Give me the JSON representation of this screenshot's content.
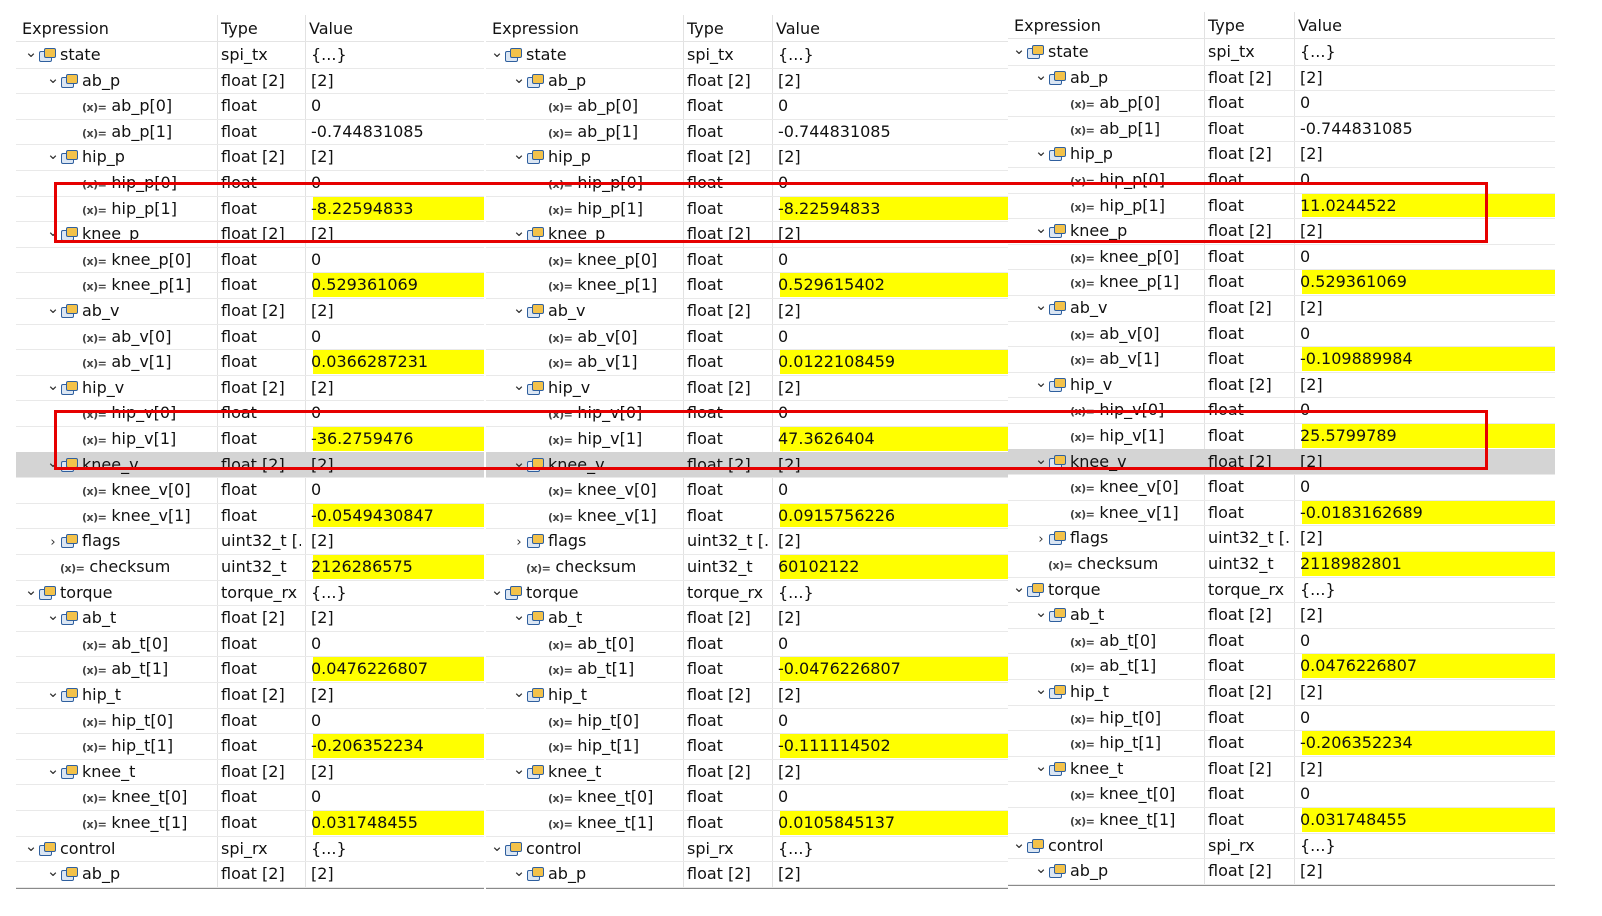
{
  "headers": {
    "expression": "Expression",
    "type": "Type",
    "value": "Value"
  },
  "panels": [
    {
      "rows": [
        {
          "d": 0,
          "t": "open",
          "i": "struct",
          "n": "state",
          "ty": "spi_tx",
          "v": "{...}"
        },
        {
          "d": 1,
          "t": "open",
          "i": "struct",
          "n": "ab_p",
          "ty": "float [2]",
          "v": "[2]"
        },
        {
          "d": 2,
          "t": "",
          "i": "var",
          "n": "ab_p[0]",
          "ty": "float",
          "v": "0"
        },
        {
          "d": 2,
          "t": "",
          "i": "var",
          "n": "ab_p[1]",
          "ty": "float",
          "v": "-0.744831085"
        },
        {
          "d": 1,
          "t": "open",
          "i": "struct",
          "n": "hip_p",
          "ty": "float [2]",
          "v": "[2]"
        },
        {
          "d": 2,
          "t": "",
          "i": "var",
          "n": "hip_p[0]",
          "ty": "float",
          "v": "0"
        },
        {
          "d": 2,
          "t": "",
          "i": "var",
          "n": "hip_p[1]",
          "ty": "float",
          "v": "-8.22594833",
          "h": true
        },
        {
          "d": 1,
          "t": "open",
          "i": "struct",
          "n": "knee_p",
          "ty": "float [2]",
          "v": "[2]"
        },
        {
          "d": 2,
          "t": "",
          "i": "var",
          "n": "knee_p[0]",
          "ty": "float",
          "v": "0"
        },
        {
          "d": 2,
          "t": "",
          "i": "var",
          "n": "knee_p[1]",
          "ty": "float",
          "v": "0.529361069",
          "h": true
        },
        {
          "d": 1,
          "t": "open",
          "i": "struct",
          "n": "ab_v",
          "ty": "float [2]",
          "v": "[2]"
        },
        {
          "d": 2,
          "t": "",
          "i": "var",
          "n": "ab_v[0]",
          "ty": "float",
          "v": "0"
        },
        {
          "d": 2,
          "t": "",
          "i": "var",
          "n": "ab_v[1]",
          "ty": "float",
          "v": "0.0366287231",
          "h": true
        },
        {
          "d": 1,
          "t": "open",
          "i": "struct",
          "n": "hip_v",
          "ty": "float [2]",
          "v": "[2]"
        },
        {
          "d": 2,
          "t": "",
          "i": "var",
          "n": "hip_v[0]",
          "ty": "float",
          "v": "0"
        },
        {
          "d": 2,
          "t": "",
          "i": "var",
          "n": "hip_v[1]",
          "ty": "float",
          "v": "-36.2759476",
          "h": true
        },
        {
          "d": 1,
          "t": "open",
          "i": "struct",
          "n": "knee_v",
          "ty": "float [2]",
          "v": "[2]",
          "sel": true
        },
        {
          "d": 2,
          "t": "",
          "i": "var",
          "n": "knee_v[0]",
          "ty": "float",
          "v": "0"
        },
        {
          "d": 2,
          "t": "",
          "i": "var",
          "n": "knee_v[1]",
          "ty": "float",
          "v": "-0.0549430847",
          "h": true
        },
        {
          "d": 1,
          "t": "closed",
          "i": "struct",
          "n": "flags",
          "ty": "uint32_t [...",
          "v": "[2]"
        },
        {
          "d": 1,
          "t": "",
          "i": "var",
          "n": "checksum",
          "ty": "uint32_t",
          "v": "2126286575",
          "h": true
        },
        {
          "d": 0,
          "t": "open",
          "i": "struct",
          "n": "torque",
          "ty": "torque_rx",
          "v": "{...}"
        },
        {
          "d": 1,
          "t": "open",
          "i": "struct",
          "n": "ab_t",
          "ty": "float [2]",
          "v": "[2]"
        },
        {
          "d": 2,
          "t": "",
          "i": "var",
          "n": "ab_t[0]",
          "ty": "float",
          "v": "0"
        },
        {
          "d": 2,
          "t": "",
          "i": "var",
          "n": "ab_t[1]",
          "ty": "float",
          "v": "0.0476226807",
          "h": true
        },
        {
          "d": 1,
          "t": "open",
          "i": "struct",
          "n": "hip_t",
          "ty": "float [2]",
          "v": "[2]"
        },
        {
          "d": 2,
          "t": "",
          "i": "var",
          "n": "hip_t[0]",
          "ty": "float",
          "v": "0"
        },
        {
          "d": 2,
          "t": "",
          "i": "var",
          "n": "hip_t[1]",
          "ty": "float",
          "v": "-0.206352234",
          "h": true
        },
        {
          "d": 1,
          "t": "open",
          "i": "struct",
          "n": "knee_t",
          "ty": "float [2]",
          "v": "[2]"
        },
        {
          "d": 2,
          "t": "",
          "i": "var",
          "n": "knee_t[0]",
          "ty": "float",
          "v": "0"
        },
        {
          "d": 2,
          "t": "",
          "i": "var",
          "n": "knee_t[1]",
          "ty": "float",
          "v": "0.031748455",
          "h": true
        },
        {
          "d": 0,
          "t": "open",
          "i": "struct",
          "n": "control",
          "ty": "spi_rx",
          "v": "{...}"
        },
        {
          "d": 1,
          "t": "open",
          "i": "struct",
          "n": "ab_p",
          "ty": "float [2]",
          "v": "[2]"
        }
      ]
    },
    {
      "rows": [
        {
          "d": 0,
          "t": "open",
          "i": "struct",
          "n": "state",
          "ty": "spi_tx",
          "v": "{...}"
        },
        {
          "d": 1,
          "t": "open",
          "i": "struct",
          "n": "ab_p",
          "ty": "float [2]",
          "v": "[2]"
        },
        {
          "d": 2,
          "t": "",
          "i": "var",
          "n": "ab_p[0]",
          "ty": "float",
          "v": "0"
        },
        {
          "d": 2,
          "t": "",
          "i": "var",
          "n": "ab_p[1]",
          "ty": "float",
          "v": "-0.744831085"
        },
        {
          "d": 1,
          "t": "open",
          "i": "struct",
          "n": "hip_p",
          "ty": "float [2]",
          "v": "[2]"
        },
        {
          "d": 2,
          "t": "",
          "i": "var",
          "n": "hip_p[0]",
          "ty": "float",
          "v": "0"
        },
        {
          "d": 2,
          "t": "",
          "i": "var",
          "n": "hip_p[1]",
          "ty": "float",
          "v": "-8.22594833",
          "h": true
        },
        {
          "d": 1,
          "t": "open",
          "i": "struct",
          "n": "knee_p",
          "ty": "float [2]",
          "v": "[2]"
        },
        {
          "d": 2,
          "t": "",
          "i": "var",
          "n": "knee_p[0]",
          "ty": "float",
          "v": "0"
        },
        {
          "d": 2,
          "t": "",
          "i": "var",
          "n": "knee_p[1]",
          "ty": "float",
          "v": "0.529615402",
          "h": true
        },
        {
          "d": 1,
          "t": "open",
          "i": "struct",
          "n": "ab_v",
          "ty": "float [2]",
          "v": "[2]"
        },
        {
          "d": 2,
          "t": "",
          "i": "var",
          "n": "ab_v[0]",
          "ty": "float",
          "v": "0"
        },
        {
          "d": 2,
          "t": "",
          "i": "var",
          "n": "ab_v[1]",
          "ty": "float",
          "v": "0.0122108459",
          "h": true
        },
        {
          "d": 1,
          "t": "open",
          "i": "struct",
          "n": "hip_v",
          "ty": "float [2]",
          "v": "[2]"
        },
        {
          "d": 2,
          "t": "",
          "i": "var",
          "n": "hip_v[0]",
          "ty": "float",
          "v": "0"
        },
        {
          "d": 2,
          "t": "",
          "i": "var",
          "n": "hip_v[1]",
          "ty": "float",
          "v": "47.3626404",
          "h": true
        },
        {
          "d": 1,
          "t": "open",
          "i": "struct",
          "n": "knee_v",
          "ty": "float [2]",
          "v": "[2]",
          "sel": true
        },
        {
          "d": 2,
          "t": "",
          "i": "var",
          "n": "knee_v[0]",
          "ty": "float",
          "v": "0"
        },
        {
          "d": 2,
          "t": "",
          "i": "var",
          "n": "knee_v[1]",
          "ty": "float",
          "v": "0.0915756226",
          "h": true
        },
        {
          "d": 1,
          "t": "closed",
          "i": "struct",
          "n": "flags",
          "ty": "uint32_t [...",
          "v": "[2]"
        },
        {
          "d": 1,
          "t": "",
          "i": "var",
          "n": "checksum",
          "ty": "uint32_t",
          "v": "60102122",
          "h": true
        },
        {
          "d": 0,
          "t": "open",
          "i": "struct",
          "n": "torque",
          "ty": "torque_rx",
          "v": "{...}"
        },
        {
          "d": 1,
          "t": "open",
          "i": "struct",
          "n": "ab_t",
          "ty": "float [2]",
          "v": "[2]"
        },
        {
          "d": 2,
          "t": "",
          "i": "var",
          "n": "ab_t[0]",
          "ty": "float",
          "v": "0"
        },
        {
          "d": 2,
          "t": "",
          "i": "var",
          "n": "ab_t[1]",
          "ty": "float",
          "v": "-0.0476226807",
          "h": true
        },
        {
          "d": 1,
          "t": "open",
          "i": "struct",
          "n": "hip_t",
          "ty": "float [2]",
          "v": "[2]"
        },
        {
          "d": 2,
          "t": "",
          "i": "var",
          "n": "hip_t[0]",
          "ty": "float",
          "v": "0"
        },
        {
          "d": 2,
          "t": "",
          "i": "var",
          "n": "hip_t[1]",
          "ty": "float",
          "v": "-0.111114502",
          "h": true
        },
        {
          "d": 1,
          "t": "open",
          "i": "struct",
          "n": "knee_t",
          "ty": "float [2]",
          "v": "[2]"
        },
        {
          "d": 2,
          "t": "",
          "i": "var",
          "n": "knee_t[0]",
          "ty": "float",
          "v": "0"
        },
        {
          "d": 2,
          "t": "",
          "i": "var",
          "n": "knee_t[1]",
          "ty": "float",
          "v": "0.0105845137",
          "h": true
        },
        {
          "d": 0,
          "t": "open",
          "i": "struct",
          "n": "control",
          "ty": "spi_rx",
          "v": "{...}"
        },
        {
          "d": 1,
          "t": "open",
          "i": "struct",
          "n": "ab_p",
          "ty": "float [2]",
          "v": "[2]"
        }
      ]
    },
    {
      "rows": [
        {
          "d": 0,
          "t": "open",
          "i": "struct",
          "n": "state",
          "ty": "spi_tx",
          "v": "{...}"
        },
        {
          "d": 1,
          "t": "open",
          "i": "struct",
          "n": "ab_p",
          "ty": "float [2]",
          "v": "[2]"
        },
        {
          "d": 2,
          "t": "",
          "i": "var",
          "n": "ab_p[0]",
          "ty": "float",
          "v": "0"
        },
        {
          "d": 2,
          "t": "",
          "i": "var",
          "n": "ab_p[1]",
          "ty": "float",
          "v": "-0.744831085"
        },
        {
          "d": 1,
          "t": "open",
          "i": "struct",
          "n": "hip_p",
          "ty": "float [2]",
          "v": "[2]"
        },
        {
          "d": 2,
          "t": "",
          "i": "var",
          "n": "hip_p[0]",
          "ty": "float",
          "v": "0"
        },
        {
          "d": 2,
          "t": "",
          "i": "var",
          "n": "hip_p[1]",
          "ty": "float",
          "v": "11.0244522",
          "h": true
        },
        {
          "d": 1,
          "t": "open",
          "i": "struct",
          "n": "knee_p",
          "ty": "float [2]",
          "v": "[2]"
        },
        {
          "d": 2,
          "t": "",
          "i": "var",
          "n": "knee_p[0]",
          "ty": "float",
          "v": "0"
        },
        {
          "d": 2,
          "t": "",
          "i": "var",
          "n": "knee_p[1]",
          "ty": "float",
          "v": "0.529361069",
          "h": true
        },
        {
          "d": 1,
          "t": "open",
          "i": "struct",
          "n": "ab_v",
          "ty": "float [2]",
          "v": "[2]"
        },
        {
          "d": 2,
          "t": "",
          "i": "var",
          "n": "ab_v[0]",
          "ty": "float",
          "v": "0"
        },
        {
          "d": 2,
          "t": "",
          "i": "var",
          "n": "ab_v[1]",
          "ty": "float",
          "v": "-0.109889984",
          "h": true
        },
        {
          "d": 1,
          "t": "open",
          "i": "struct",
          "n": "hip_v",
          "ty": "float [2]",
          "v": "[2]"
        },
        {
          "d": 2,
          "t": "",
          "i": "var",
          "n": "hip_v[0]",
          "ty": "float",
          "v": "0"
        },
        {
          "d": 2,
          "t": "",
          "i": "var",
          "n": "hip_v[1]",
          "ty": "float",
          "v": "25.5799789",
          "h": true
        },
        {
          "d": 1,
          "t": "open",
          "i": "struct",
          "n": "knee_v",
          "ty": "float [2]",
          "v": "[2]",
          "sel": true
        },
        {
          "d": 2,
          "t": "",
          "i": "var",
          "n": "knee_v[0]",
          "ty": "float",
          "v": "0"
        },
        {
          "d": 2,
          "t": "",
          "i": "var",
          "n": "knee_v[1]",
          "ty": "float",
          "v": "-0.0183162689",
          "h": true
        },
        {
          "d": 1,
          "t": "closed",
          "i": "struct",
          "n": "flags",
          "ty": "uint32_t [...",
          "v": "[2]"
        },
        {
          "d": 1,
          "t": "",
          "i": "var",
          "n": "checksum",
          "ty": "uint32_t",
          "v": "2118982801",
          "h": true
        },
        {
          "d": 0,
          "t": "open",
          "i": "struct",
          "n": "torque",
          "ty": "torque_rx",
          "v": "{...}"
        },
        {
          "d": 1,
          "t": "open",
          "i": "struct",
          "n": "ab_t",
          "ty": "float [2]",
          "v": "[2]"
        },
        {
          "d": 2,
          "t": "",
          "i": "var",
          "n": "ab_t[0]",
          "ty": "float",
          "v": "0"
        },
        {
          "d": 2,
          "t": "",
          "i": "var",
          "n": "ab_t[1]",
          "ty": "float",
          "v": "0.0476226807",
          "h": true
        },
        {
          "d": 1,
          "t": "open",
          "i": "struct",
          "n": "hip_t",
          "ty": "float [2]",
          "v": "[2]"
        },
        {
          "d": 2,
          "t": "",
          "i": "var",
          "n": "hip_t[0]",
          "ty": "float",
          "v": "0"
        },
        {
          "d": 2,
          "t": "",
          "i": "var",
          "n": "hip_t[1]",
          "ty": "float",
          "v": "-0.206352234",
          "h": true
        },
        {
          "d": 1,
          "t": "open",
          "i": "struct",
          "n": "knee_t",
          "ty": "float [2]",
          "v": "[2]"
        },
        {
          "d": 2,
          "t": "",
          "i": "var",
          "n": "knee_t[0]",
          "ty": "float",
          "v": "0"
        },
        {
          "d": 2,
          "t": "",
          "i": "var",
          "n": "knee_t[1]",
          "ty": "float",
          "v": "0.031748455",
          "h": true
        },
        {
          "d": 0,
          "t": "open",
          "i": "struct",
          "n": "control",
          "ty": "spi_rx",
          "v": "{...}"
        },
        {
          "d": 1,
          "t": "open",
          "i": "struct",
          "n": "ab_p",
          "ty": "float [2]",
          "v": "[2]"
        }
      ]
    }
  ],
  "colors": {
    "highlight": "#ffff00",
    "annotation": "#e60000",
    "selected_row": "#d4d4d4"
  },
  "icons": {
    "struct": "struct-icon",
    "var": "variable-icon",
    "open": "chevron-down-icon",
    "closed": "chevron-right-icon"
  },
  "var_glyph": "(x)="
}
